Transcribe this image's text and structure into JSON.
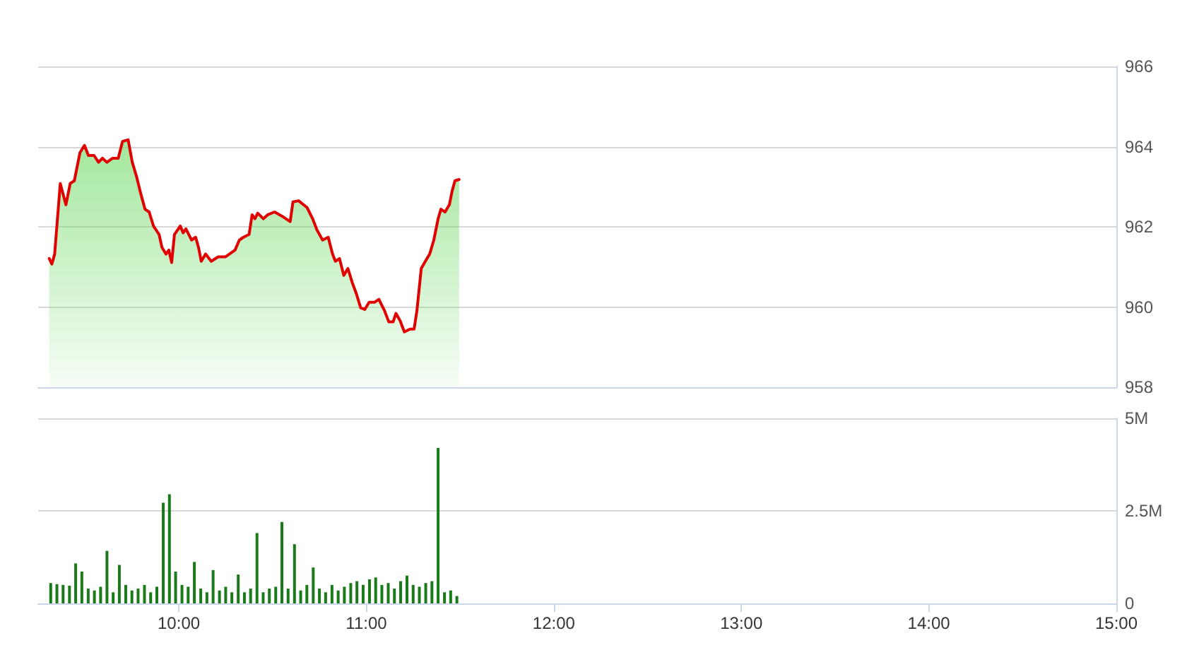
{
  "chart_data": [
    {
      "type": "area",
      "xlim": [
        9.25,
        15
      ],
      "ylim": [
        958,
        966
      ],
      "yticks": [
        958,
        960,
        962,
        964,
        966
      ],
      "grid": "y",
      "tick_labels": "y",
      "marker": "none",
      "line_style": "solid",
      "series": [
        {
          "color": "#e00000",
          "x": [
            9.309,
            9.323,
            9.338,
            9.368,
            9.398,
            9.421,
            9.443,
            9.473,
            9.497,
            9.518,
            9.548,
            9.572,
            9.593,
            9.617,
            9.647,
            9.677,
            9.7,
            9.73,
            9.752,
            9.775,
            9.797,
            9.82,
            9.842,
            9.865,
            9.895,
            9.91,
            9.932,
            9.947,
            9.962,
            9.977,
            10.008,
            10.023,
            10.038,
            10.068,
            10.09,
            10.105,
            10.12,
            10.143,
            10.173,
            10.21,
            10.248,
            10.27,
            10.3,
            10.323,
            10.345,
            10.375,
            10.391,
            10.406,
            10.421,
            10.451,
            10.474,
            10.511,
            10.549,
            10.594,
            10.609,
            10.639,
            10.684,
            10.714,
            10.737,
            10.767,
            10.797,
            10.82,
            10.835,
            10.857,
            10.88,
            10.902,
            10.925,
            10.947,
            10.97,
            10.992,
            11.015,
            11.045,
            11.067,
            11.097,
            11.12,
            11.143,
            11.158,
            11.18,
            11.203,
            11.233,
            11.255,
            11.27,
            11.293,
            11.315,
            11.338,
            11.36,
            11.383,
            11.398,
            11.42,
            11.443,
            11.458,
            11.473,
            11.495
          ],
          "values": [
            961.21,
            961.07,
            961.32,
            963.08,
            962.55,
            963.08,
            963.15,
            963.85,
            964.03,
            963.78,
            963.78,
            963.61,
            963.71,
            963.61,
            963.71,
            963.71,
            964.13,
            964.17,
            963.61,
            963.25,
            962.83,
            962.44,
            962.37,
            962.02,
            961.81,
            961.49,
            961.32,
            961.42,
            961.11,
            961.81,
            962.02,
            961.85,
            961.95,
            961.67,
            961.74,
            961.49,
            961.14,
            961.32,
            961.14,
            961.25,
            961.25,
            961.32,
            961.42,
            961.67,
            961.74,
            961.81,
            962.3,
            962.2,
            962.34,
            962.2,
            962.3,
            962.37,
            962.27,
            962.13,
            962.62,
            962.65,
            962.48,
            962.2,
            961.92,
            961.67,
            961.74,
            961.32,
            961.14,
            961.21,
            960.79,
            960.96,
            960.61,
            960.33,
            959.98,
            959.94,
            960.12,
            960.12,
            960.19,
            959.91,
            959.63,
            959.63,
            959.84,
            959.66,
            959.38,
            959.45,
            959.45,
            959.91,
            960.96,
            961.14,
            961.32,
            961.67,
            962.2,
            962.44,
            962.37,
            962.55,
            962.9,
            963.15,
            963.18
          ]
        }
      ]
    },
    {
      "type": "bar",
      "xlim": [
        9.25,
        15
      ],
      "xticks": [
        {
          "value": 10,
          "label": "10:00"
        },
        {
          "value": 11,
          "label": "11:00"
        },
        {
          "value": 12,
          "label": "12:00"
        },
        {
          "value": 13,
          "label": "13:00"
        },
        {
          "value": 14,
          "label": "14:00"
        },
        {
          "value": 15,
          "label": "15:00"
        }
      ],
      "ylim": [
        0,
        5
      ],
      "yticks": [
        0,
        {
          "value": 2.5,
          "label": "2.5M"
        },
        {
          "value": 5,
          "label": "5M"
        }
      ],
      "grid": "y",
      "series": [
        {
          "color": "#1a7a1a",
          "x": [
            9.317,
            9.35,
            9.383,
            9.417,
            9.45,
            9.483,
            9.517,
            9.55,
            9.583,
            9.617,
            9.65,
            9.683,
            9.717,
            9.75,
            9.783,
            9.817,
            9.85,
            9.883,
            9.917,
            9.95,
            9.983,
            10.017,
            10.05,
            10.083,
            10.117,
            10.15,
            10.183,
            10.217,
            10.25,
            10.283,
            10.317,
            10.35,
            10.383,
            10.417,
            10.45,
            10.483,
            10.517,
            10.55,
            10.583,
            10.617,
            10.65,
            10.683,
            10.717,
            10.75,
            10.783,
            10.817,
            10.85,
            10.883,
            10.917,
            10.95,
            10.983,
            11.017,
            11.05,
            11.083,
            11.117,
            11.15,
            11.183,
            11.217,
            11.25,
            11.283,
            11.317,
            11.35,
            11.383,
            11.417,
            11.45,
            11.483
          ],
          "values": [
            0.55,
            0.52,
            0.5,
            0.48,
            1.08,
            0.86,
            0.4,
            0.35,
            0.45,
            1.42,
            0.3,
            1.04,
            0.5,
            0.35,
            0.4,
            0.5,
            0.3,
            0.45,
            2.72,
            2.95,
            0.86,
            0.5,
            0.45,
            1.12,
            0.4,
            0.3,
            0.9,
            0.35,
            0.45,
            0.3,
            0.78,
            0.3,
            0.4,
            1.9,
            0.3,
            0.4,
            0.45,
            2.2,
            0.4,
            1.6,
            0.35,
            0.5,
            0.97,
            0.4,
            0.3,
            0.5,
            0.35,
            0.45,
            0.55,
            0.6,
            0.5,
            0.65,
            0.7,
            0.5,
            0.55,
            0.4,
            0.6,
            0.75,
            0.5,
            0.45,
            0.55,
            0.6,
            4.2,
            0.3,
            0.35,
            0.2
          ]
        }
      ]
    }
  ]
}
